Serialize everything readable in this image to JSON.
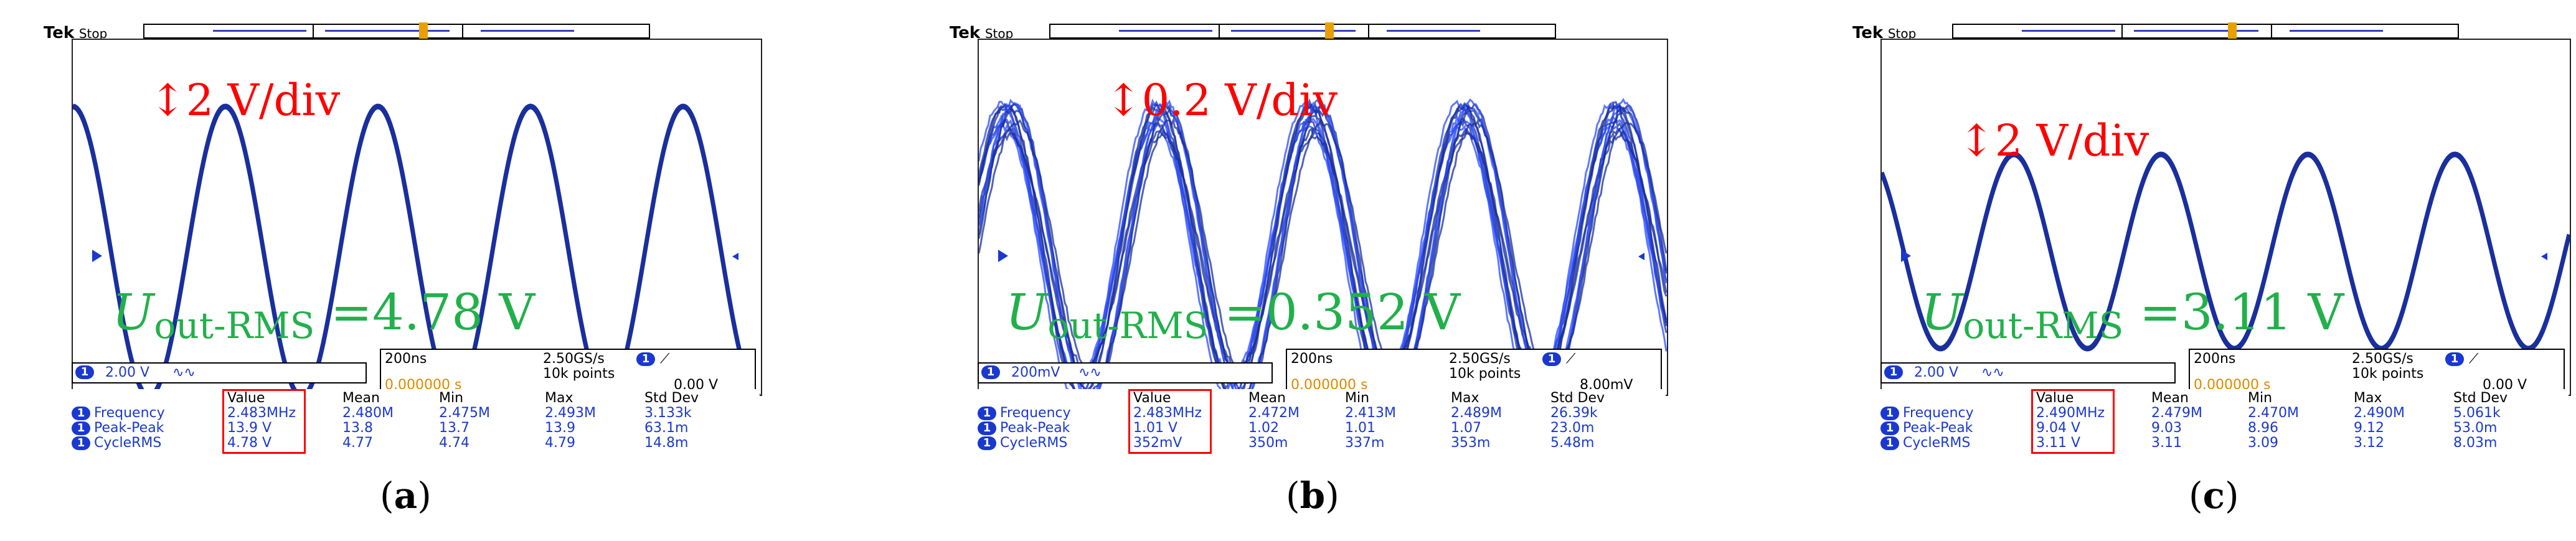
{
  "panels": [
    {
      "brand": "Tek",
      "status": "Stop",
      "scale_label": "2 V/div",
      "uout_symbol": "U",
      "uout_sub": "out-RMS",
      "uout_value": "=4.78 V",
      "channel_num": "1",
      "channel_volts": "2.00 V",
      "bw_symbol": "∿∿",
      "timebase": "200ns",
      "sample_rate": "2.50GS/s",
      "record": "10k points",
      "trigger_channel": "1",
      "trigger_slope": "⟋",
      "trigger_pos": "0.000000 s",
      "trigger_level": "0.00 V",
      "headers": [
        "Value",
        "Mean",
        "Min",
        "Max",
        "Std Dev"
      ],
      "rows": [
        {
          "label": "Frequency",
          "values": [
            "2.483MHz",
            "2.480M",
            "2.475M",
            "2.493M",
            "3.133k"
          ]
        },
        {
          "label": "Peak-Peak",
          "values": [
            "13.9 V",
            "13.8",
            "13.7",
            "13.9",
            "63.1m"
          ]
        },
        {
          "label": "CycleRMS",
          "values": [
            "4.78 V",
            "4.77",
            "4.74",
            "4.79",
            "14.8m"
          ]
        }
      ],
      "caption_letter": "a"
    },
    {
      "brand": "Tek",
      "status": "Stop",
      "scale_label": "0.2 V/div",
      "uout_symbol": "U",
      "uout_sub": "out-RMS",
      "uout_value": "=0.352 V",
      "channel_num": "1",
      "channel_volts": "200mV",
      "bw_symbol": "∿∿",
      "timebase": "200ns",
      "sample_rate": "2.50GS/s",
      "record": "10k points",
      "trigger_channel": "1",
      "trigger_slope": "⟋",
      "trigger_pos": "0.000000 s",
      "trigger_level": "8.00mV",
      "headers": [
        "Value",
        "Mean",
        "Min",
        "Max",
        "Std Dev"
      ],
      "rows": [
        {
          "label": "Frequency",
          "values": [
            "2.483MHz",
            "2.472M",
            "2.413M",
            "2.489M",
            "26.39k"
          ]
        },
        {
          "label": "Peak-Peak",
          "values": [
            "1.01 V",
            "1.02",
            "1.01",
            "1.07",
            "23.0m"
          ]
        },
        {
          "label": "CycleRMS",
          "values": [
            "352mV",
            "350m",
            "337m",
            "353m",
            "5.48m"
          ]
        }
      ],
      "caption_letter": "b"
    },
    {
      "brand": "Tek",
      "status": "Stop",
      "scale_label": "2 V/div",
      "uout_symbol": "U",
      "uout_sub": "out-RMS",
      "uout_value": "=3.11 V",
      "channel_num": "1",
      "channel_volts": "2.00 V",
      "bw_symbol": "∿∿",
      "timebase": "200ns",
      "sample_rate": "2.50GS/s",
      "record": "10k points",
      "trigger_channel": "1",
      "trigger_slope": "⟋",
      "trigger_pos": "0.000000 s",
      "trigger_level": "0.00 V",
      "headers": [
        "Value",
        "Mean",
        "Min",
        "Max",
        "Std Dev"
      ],
      "rows": [
        {
          "label": "Frequency",
          "values": [
            "2.490MHz",
            "2.479M",
            "2.470M",
            "2.490M",
            "5.061k"
          ]
        },
        {
          "label": "Peak-Peak",
          "values": [
            "9.04 V",
            "9.03",
            "8.96",
            "9.12",
            "53.0m"
          ]
        },
        {
          "label": "CycleRMS",
          "values": [
            "3.11 V",
            "3.11",
            "3.09",
            "3.12",
            "8.03m"
          ]
        }
      ],
      "caption_letter": "c"
    }
  ],
  "colors": {
    "trace": "#1a2f9e",
    "scale_text": "#ff0000",
    "rms_text": "#22b04b",
    "trigger": "#e8a000"
  }
}
